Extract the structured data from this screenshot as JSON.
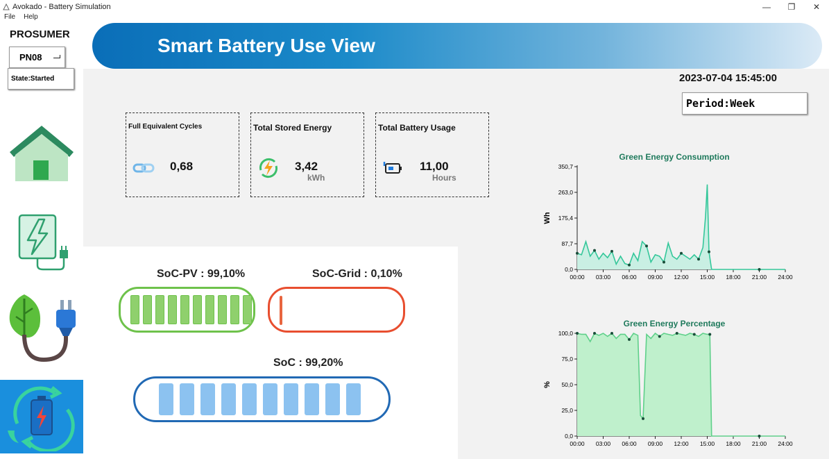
{
  "window": {
    "title": "Avokado - Battery Simulation",
    "controls": {
      "minimize": "—",
      "restore": "❐",
      "close": "✕"
    }
  },
  "menu": [
    "File",
    "Help"
  ],
  "sidebar": {
    "title": "PROSUMER",
    "prosumer_id": "PN08",
    "state": "State:Started",
    "nav": [
      {
        "name": "house-icon"
      },
      {
        "name": "energy-device-icon"
      },
      {
        "name": "green-plug-icon"
      },
      {
        "name": "battery-cycle-icon",
        "active": true
      }
    ]
  },
  "header": {
    "title": "Smart Battery Use View"
  },
  "datetime": "2023-07-04 15:45:00",
  "period": "Period:Week",
  "cards": [
    {
      "title": "Full Equivalent Cycles",
      "value": "0,68",
      "unit": "",
      "icon": "link-icon"
    },
    {
      "title": "Total Stored Energy",
      "value": "3,42",
      "unit": "kWh",
      "icon": "charging-icon"
    },
    {
      "title": "Total Battery Usage",
      "value": "11,00",
      "unit": "Hours",
      "icon": "battery-icon"
    }
  ],
  "soc": {
    "pv_label": "SoC-PV : 99,10%",
    "grid_label": "SoC-Grid : 0,10%",
    "total_label": "SoC : 99,20%",
    "pv_fraction": 0.991,
    "grid_fraction": 0.001,
    "total_fraction": 0.992
  },
  "colors": {
    "accent_green": "#34c79a",
    "pv_green": "#6ec24b",
    "grid_red": "#e84e2f",
    "soc_blue": "#2169b4",
    "banner_blue": "#0a6eb8"
  },
  "chart_data": [
    {
      "type": "area",
      "title": "Green Energy Consumption",
      "xlabel": "",
      "ylabel": "Wh",
      "ylim": [
        0,
        350.7
      ],
      "yticks": [
        "0,0",
        "87,7",
        "175,4",
        "263,0",
        "350,7"
      ],
      "xticks": [
        "00:00",
        "03:00",
        "06:00",
        "09:00",
        "12:00",
        "15:00",
        "18:00",
        "21:00",
        "24:00"
      ],
      "x": [
        0,
        0.5,
        1,
        1.5,
        2,
        2.5,
        3,
        3.5,
        4,
        4.5,
        5,
        5.5,
        6,
        6.5,
        7,
        7.5,
        8,
        8.5,
        9,
        9.5,
        10,
        10.5,
        11,
        11.5,
        12,
        12.5,
        13,
        13.5,
        14,
        14.5,
        14.8,
        15,
        15.2,
        15.5,
        16,
        18,
        21,
        24
      ],
      "values": [
        55,
        50,
        95,
        45,
        65,
        35,
        55,
        40,
        62,
        18,
        45,
        20,
        15,
        55,
        30,
        95,
        80,
        25,
        50,
        45,
        25,
        90,
        45,
        35,
        55,
        45,
        35,
        50,
        35,
        75,
        180,
        290,
        60,
        0,
        0,
        0,
        0,
        0
      ]
    },
    {
      "type": "area",
      "title": "Green Energy Percentage",
      "xlabel": "",
      "ylabel": "%",
      "ylim": [
        0,
        100
      ],
      "yticks": [
        "0,0",
        "25,0",
        "50,0",
        "75,0",
        "100,0"
      ],
      "xticks": [
        "00:00",
        "03:00",
        "06:00",
        "09:00",
        "12:00",
        "15:00",
        "18:00",
        "21:00",
        "24:00"
      ],
      "x": [
        0,
        0.5,
        1,
        1.5,
        2,
        2.5,
        3,
        3.5,
        4,
        4.5,
        5,
        5.5,
        6,
        6.5,
        7,
        7.3,
        7.6,
        8,
        8.5,
        9,
        9.5,
        10,
        10.5,
        11,
        11.5,
        12,
        12.5,
        13,
        13.5,
        14,
        14.5,
        15,
        15.3,
        15.5,
        16,
        18,
        21,
        24
      ],
      "values": [
        100,
        99,
        99,
        92,
        100,
        98,
        100,
        97,
        100,
        95,
        99,
        99,
        94,
        100,
        98,
        20,
        17,
        99,
        95,
        100,
        97,
        100,
        99,
        98,
        100,
        99,
        98,
        100,
        99,
        97,
        100,
        99,
        99,
        0,
        0,
        0,
        0,
        0
      ]
    }
  ]
}
